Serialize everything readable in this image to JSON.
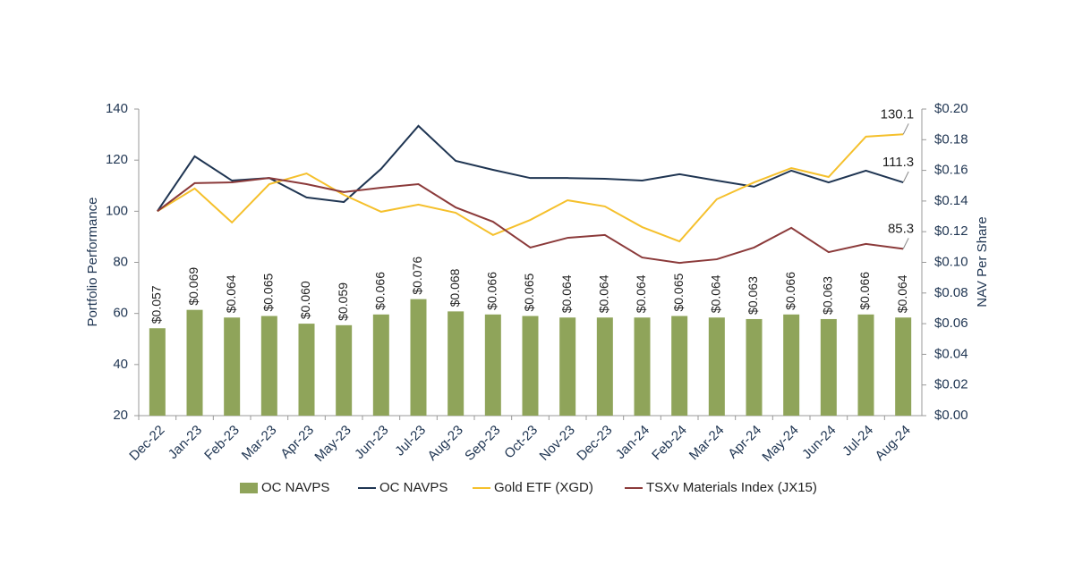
{
  "chart_data": {
    "type": "bar",
    "categories": [
      "Dec-22",
      "Jan-23",
      "Feb-23",
      "Mar-23",
      "Apr-23",
      "May-23",
      "Jun-23",
      "Jul-23",
      "Aug-23",
      "Sep-23",
      "Oct-23",
      "Nov-23",
      "Dec-23",
      "Jan-24",
      "Feb-24",
      "Mar-24",
      "Apr-24",
      "May-24",
      "Jun-24",
      "Jul-24",
      "Aug-24"
    ],
    "y_label": "Portfolio Performance",
    "y2_label": "NAV Per Share",
    "ylim": [
      20,
      140
    ],
    "yticks": [
      20,
      40,
      60,
      80,
      100,
      120,
      140
    ],
    "y2lim": [
      0,
      0.2
    ],
    "y2ticks": [
      {
        "value": 0,
        "label": "$0.00"
      },
      {
        "value": 0.02,
        "label": "$0.02"
      },
      {
        "value": 0.04,
        "label": "$0.04"
      },
      {
        "value": 0.06,
        "label": "$0.06"
      },
      {
        "value": 0.08,
        "label": "$0.08"
      },
      {
        "value": 0.1,
        "label": "$0.10"
      },
      {
        "value": 0.12,
        "label": "$0.12"
      },
      {
        "value": 0.14,
        "label": "$0.14"
      },
      {
        "value": 0.16,
        "label": "$0.16"
      },
      {
        "value": 0.18,
        "label": "$0.18"
      },
      {
        "value": 0.2,
        "label": "$0.20"
      }
    ],
    "legend": "bottom",
    "series": [
      {
        "name": "OC NAVPS",
        "type": "bar",
        "axis": "y2",
        "color": "#8fa45a",
        "values": [
          0.057,
          0.069,
          0.064,
          0.065,
          0.06,
          0.059,
          0.066,
          0.076,
          0.068,
          0.066,
          0.065,
          0.064,
          0.064,
          0.064,
          0.065,
          0.064,
          0.063,
          0.066,
          0.063,
          0.066,
          0.064
        ],
        "value_labels": [
          "$0.057",
          "$0.069",
          "$0.064",
          "$0.065",
          "$0.060",
          "$0.059",
          "$0.066",
          "$0.076",
          "$0.068",
          "$0.066",
          "$0.065",
          "$0.064",
          "$0.064",
          "$0.064",
          "$0.065",
          "$0.064",
          "$0.063",
          "$0.066",
          "$0.063",
          "$0.066",
          "$0.064"
        ]
      },
      {
        "name": "OC NAVPS",
        "type": "line",
        "color": "#1f3552",
        "values": [
          100,
          121.5,
          112,
          113,
          105.4,
          103.6,
          116.6,
          133.4,
          119.7,
          116.2,
          113,
          113,
          112.7,
          112,
          114.5,
          112,
          109.6,
          115.9,
          111.3,
          115.9,
          111.3
        ]
      },
      {
        "name": "Gold ETF (XGD)",
        "type": "line",
        "color": "#f5c02c",
        "values": [
          100,
          108.9,
          95.6,
          110.6,
          114.8,
          106.4,
          99.8,
          102.6,
          99.4,
          90.7,
          96.6,
          104.3,
          101.9,
          93.8,
          88.2,
          104.7,
          111.3,
          116.9,
          113.4,
          129.2,
          130.1
        ]
      },
      {
        "name": "TSXv Materials Index (JX15)",
        "type": "line",
        "color": "#8b3a3a",
        "values": [
          100,
          111,
          111.3,
          113,
          110.6,
          107.5,
          109.2,
          110.6,
          101.5,
          95.9,
          85.8,
          89.6,
          90.7,
          81.9,
          79.8,
          81.2,
          85.8,
          93.5,
          84,
          87.2,
          85.3
        ]
      }
    ]
  }
}
